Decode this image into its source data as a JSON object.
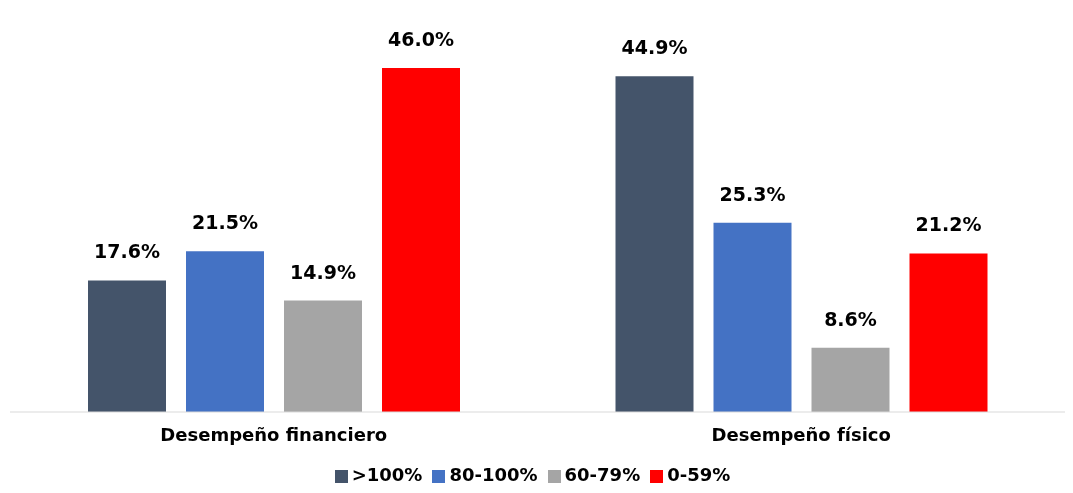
{
  "chart_data": {
    "type": "bar",
    "categories": [
      "Desempeño financiero",
      "Desempeño físico"
    ],
    "series": [
      {
        "name": ">100%",
        "color": "#44546a",
        "values": [
          17.6,
          44.9
        ],
        "value_labels": [
          "17.6%",
          "44.9%"
        ]
      },
      {
        "name": "80-100%",
        "color": "#4472c4",
        "values": [
          21.5,
          25.3
        ],
        "value_labels": [
          "21.5%",
          "25.3%"
        ]
      },
      {
        "name": "60-79%",
        "color": "#a5a5a5",
        "values": [
          14.9,
          8.6
        ],
        "value_labels": [
          "14.9%",
          "8.6%"
        ]
      },
      {
        "name": "0-59%",
        "color": "#ff0000",
        "values": [
          46.0,
          21.2
        ],
        "value_labels": [
          "46.0%",
          "21.2%"
        ]
      }
    ],
    "legend": "bottom",
    "grid": false
  }
}
